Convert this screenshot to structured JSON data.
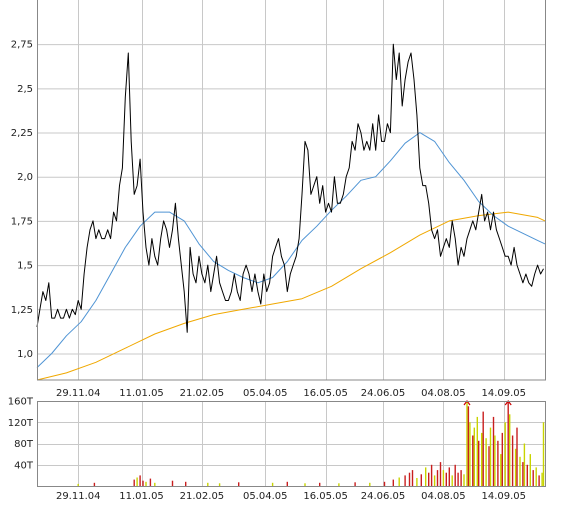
{
  "chart_data": [
    {
      "type": "line",
      "title": "",
      "xlabel": "",
      "ylabel": "",
      "ylim": [
        0.85,
        3.0
      ],
      "xlim": [
        "2004-11-01",
        "2005-10-12"
      ],
      "x_tick_labels": [
        "29.11.04",
        "11.01.05",
        "21.02.05",
        "05.04.05",
        "16.05.05",
        "24.06.05",
        "04.08.05",
        "14.09.05"
      ],
      "x_tick_dates": [
        "2004-11-29",
        "2005-01-11",
        "2005-02-21",
        "2005-04-05",
        "2005-05-16",
        "2005-06-24",
        "2005-08-04",
        "2005-09-14"
      ],
      "y_tick_labels": [
        "1,0",
        "1,25",
        "1,5",
        "1,75",
        "2,0",
        "2,25",
        "2,5",
        "2,75"
      ],
      "y_tick_values": [
        1.0,
        1.25,
        1.5,
        1.75,
        2.0,
        2.25,
        2.5,
        2.75
      ],
      "grid": true,
      "colors": {
        "price": "#000000",
        "ma_short": "#4f94d4",
        "ma_long": "#f0a800",
        "grid": "#c8c8c8",
        "frame": "#888888"
      },
      "series": [
        {
          "key": "price",
          "x": [
            "2004-11-01",
            "2004-11-03",
            "2004-11-05",
            "2004-11-07",
            "2004-11-09",
            "2004-11-11",
            "2004-11-13",
            "2004-11-15",
            "2004-11-17",
            "2004-11-19",
            "2004-11-21",
            "2004-11-23",
            "2004-11-25",
            "2004-11-27",
            "2004-11-29",
            "2004-12-01",
            "2004-12-03",
            "2004-12-05",
            "2004-12-07",
            "2004-12-09",
            "2004-12-11",
            "2004-12-13",
            "2004-12-15",
            "2004-12-17",
            "2004-12-19",
            "2004-12-21",
            "2004-12-23",
            "2004-12-25",
            "2004-12-27",
            "2004-12-29",
            "2004-12-31",
            "2005-01-02",
            "2005-01-04",
            "2005-01-06",
            "2005-01-08",
            "2005-01-10",
            "2005-01-12",
            "2005-01-14",
            "2005-01-16",
            "2005-01-18",
            "2005-01-20",
            "2005-01-22",
            "2005-01-24",
            "2005-01-26",
            "2005-01-28",
            "2005-01-30",
            "2005-02-01",
            "2005-02-03",
            "2005-02-05",
            "2005-02-07",
            "2005-02-09",
            "2005-02-11",
            "2005-02-13",
            "2005-02-15",
            "2005-02-17",
            "2005-02-19",
            "2005-02-21",
            "2005-02-23",
            "2005-02-25",
            "2005-02-27",
            "2005-03-01",
            "2005-03-03",
            "2005-03-05",
            "2005-03-07",
            "2005-03-09",
            "2005-03-11",
            "2005-03-13",
            "2005-03-15",
            "2005-03-17",
            "2005-03-19",
            "2005-03-21",
            "2005-03-23",
            "2005-03-25",
            "2005-03-27",
            "2005-03-29",
            "2005-03-31",
            "2005-04-02",
            "2005-04-04",
            "2005-04-06",
            "2005-04-08",
            "2005-04-10",
            "2005-04-12",
            "2005-04-14",
            "2005-04-16",
            "2005-04-18",
            "2005-04-20",
            "2005-04-22",
            "2005-04-24",
            "2005-04-26",
            "2005-04-28",
            "2005-04-30",
            "2005-05-02",
            "2005-05-04",
            "2005-05-06",
            "2005-05-08",
            "2005-05-10",
            "2005-05-12",
            "2005-05-14",
            "2005-05-16",
            "2005-05-18",
            "2005-05-20",
            "2005-05-22",
            "2005-05-24",
            "2005-05-26",
            "2005-05-28",
            "2005-05-30",
            "2005-06-01",
            "2005-06-03",
            "2005-06-05",
            "2005-06-07",
            "2005-06-09",
            "2005-06-11",
            "2005-06-13",
            "2005-06-15",
            "2005-06-17",
            "2005-06-19",
            "2005-06-21",
            "2005-06-23",
            "2005-06-25",
            "2005-06-27",
            "2005-06-29",
            "2005-07-01",
            "2005-07-03",
            "2005-07-05",
            "2005-07-07",
            "2005-07-09",
            "2005-07-11",
            "2005-07-13",
            "2005-07-15",
            "2005-07-17",
            "2005-07-19",
            "2005-07-21",
            "2005-07-23",
            "2005-07-25",
            "2005-07-27",
            "2005-07-29",
            "2005-07-31",
            "2005-08-02",
            "2005-08-04",
            "2005-08-06",
            "2005-08-08",
            "2005-08-10",
            "2005-08-12",
            "2005-08-14",
            "2005-08-16",
            "2005-08-18",
            "2005-08-20",
            "2005-08-22",
            "2005-08-24",
            "2005-08-26",
            "2005-08-28",
            "2005-08-30",
            "2005-09-01",
            "2005-09-03",
            "2005-09-05",
            "2005-09-07",
            "2005-09-09",
            "2005-09-11",
            "2005-09-13",
            "2005-09-15",
            "2005-09-17",
            "2005-09-19",
            "2005-09-21",
            "2005-09-23",
            "2005-09-25",
            "2005-09-27",
            "2005-09-29",
            "2005-10-01",
            "2005-10-03",
            "2005-10-05",
            "2005-10-07",
            "2005-10-09",
            "2005-10-11"
          ],
          "values": [
            1.15,
            1.25,
            1.35,
            1.3,
            1.4,
            1.2,
            1.2,
            1.25,
            1.2,
            1.2,
            1.25,
            1.2,
            1.25,
            1.22,
            1.3,
            1.25,
            1.45,
            1.6,
            1.7,
            1.75,
            1.65,
            1.7,
            1.65,
            1.65,
            1.7,
            1.65,
            1.8,
            1.75,
            1.95,
            2.05,
            2.45,
            2.7,
            2.2,
            1.9,
            1.95,
            2.1,
            1.8,
            1.6,
            1.5,
            1.65,
            1.55,
            1.5,
            1.65,
            1.75,
            1.7,
            1.6,
            1.7,
            1.85,
            1.65,
            1.5,
            1.35,
            1.12,
            1.6,
            1.45,
            1.4,
            1.55,
            1.45,
            1.4,
            1.5,
            1.35,
            1.45,
            1.55,
            1.4,
            1.35,
            1.3,
            1.3,
            1.35,
            1.45,
            1.35,
            1.3,
            1.45,
            1.5,
            1.45,
            1.35,
            1.45,
            1.35,
            1.28,
            1.45,
            1.35,
            1.4,
            1.55,
            1.6,
            1.65,
            1.55,
            1.5,
            1.35,
            1.45,
            1.5,
            1.55,
            1.65,
            1.9,
            2.2,
            2.15,
            1.9,
            1.95,
            2.0,
            1.85,
            1.95,
            1.8,
            1.85,
            1.8,
            2.0,
            1.85,
            1.85,
            1.9,
            2.0,
            2.05,
            2.2,
            2.15,
            2.3,
            2.25,
            2.15,
            2.2,
            2.15,
            2.3,
            2.15,
            2.35,
            2.2,
            2.2,
            2.3,
            2.25,
            2.75,
            2.55,
            2.7,
            2.4,
            2.55,
            2.65,
            2.7,
            2.55,
            2.35,
            2.05,
            1.95,
            1.95,
            1.85,
            1.7,
            1.65,
            1.7,
            1.55,
            1.6,
            1.65,
            1.6,
            1.75,
            1.65,
            1.5,
            1.6,
            1.55,
            1.65,
            1.7,
            1.75,
            1.7,
            1.8,
            1.9,
            1.75,
            1.8,
            1.7,
            1.8,
            1.7,
            1.65,
            1.6,
            1.55,
            1.55,
            1.5,
            1.6,
            1.5,
            1.45,
            1.4,
            1.45,
            1.4,
            1.38,
            1.45,
            1.5,
            1.45,
            1.48
          ]
        },
        {
          "key": "ma_short",
          "x": [
            "2004-11-01",
            "2004-11-11",
            "2004-11-21",
            "2004-12-01",
            "2004-12-11",
            "2004-12-21",
            "2004-12-31",
            "2005-01-10",
            "2005-01-20",
            "2005-01-30",
            "2005-02-09",
            "2005-02-19",
            "2005-03-01",
            "2005-03-11",
            "2005-03-21",
            "2005-03-31",
            "2005-04-10",
            "2005-04-20",
            "2005-04-30",
            "2005-05-10",
            "2005-05-20",
            "2005-05-30",
            "2005-06-09",
            "2005-06-19",
            "2005-06-29",
            "2005-07-09",
            "2005-07-19",
            "2005-07-29",
            "2005-08-08",
            "2005-08-18",
            "2005-08-28",
            "2005-09-07",
            "2005-09-17",
            "2005-09-27",
            "2005-10-07",
            "2005-10-12"
          ],
          "values": [
            0.92,
            1.0,
            1.1,
            1.18,
            1.3,
            1.45,
            1.6,
            1.72,
            1.8,
            1.8,
            1.75,
            1.62,
            1.52,
            1.47,
            1.43,
            1.4,
            1.43,
            1.52,
            1.64,
            1.72,
            1.81,
            1.89,
            1.98,
            2.0,
            2.09,
            2.19,
            2.25,
            2.2,
            2.08,
            1.98,
            1.86,
            1.78,
            1.72,
            1.68,
            1.64,
            1.62
          ]
        },
        {
          "key": "ma_long",
          "x": [
            "2004-11-01",
            "2004-11-21",
            "2004-12-11",
            "2004-12-31",
            "2005-01-20",
            "2005-02-09",
            "2005-03-01",
            "2005-03-21",
            "2005-04-10",
            "2005-04-30",
            "2005-05-20",
            "2005-06-09",
            "2005-06-29",
            "2005-07-19",
            "2005-08-08",
            "2005-08-28",
            "2005-09-17",
            "2005-10-07",
            "2005-10-12"
          ],
          "values": [
            0.85,
            0.89,
            0.95,
            1.03,
            1.11,
            1.17,
            1.22,
            1.25,
            1.28,
            1.31,
            1.38,
            1.48,
            1.57,
            1.67,
            1.75,
            1.78,
            1.8,
            1.77,
            1.75
          ]
        }
      ]
    },
    {
      "type": "bar",
      "title": "",
      "xlabel": "",
      "ylabel": "",
      "ylim": [
        0,
        160
      ],
      "y_tick_labels": [
        "40T",
        "80T",
        "120T",
        "160T"
      ],
      "y_tick_values": [
        40,
        80,
        120,
        160
      ],
      "x_tick_labels": [
        "29.11.04",
        "11.01.05",
        "21.02.05",
        "05.04.05",
        "16.05.05",
        "24.06.05",
        "04.08.05",
        "14.09.05"
      ],
      "grid": true,
      "colors": {
        "up": "#c8d400",
        "down": "#c81e1e",
        "arrow": "#cc0000"
      },
      "clipped_bars_shown_with_arrows": [
        "2005-08-20",
        "2005-09-17"
      ],
      "volume": {
        "x": [
          "2004-11-29",
          "2004-12-10",
          "2005-01-06",
          "2005-01-08",
          "2005-01-10",
          "2005-01-12",
          "2005-01-14",
          "2005-01-17",
          "2005-01-20",
          "2005-02-01",
          "2005-02-10",
          "2005-02-25",
          "2005-03-05",
          "2005-03-18",
          "2005-04-10",
          "2005-04-20",
          "2005-05-02",
          "2005-05-12",
          "2005-05-25",
          "2005-06-05",
          "2005-06-15",
          "2005-06-25",
          "2005-07-01",
          "2005-07-05",
          "2005-07-09",
          "2005-07-12",
          "2005-07-14",
          "2005-07-17",
          "2005-07-20",
          "2005-07-23",
          "2005-07-25",
          "2005-07-27",
          "2005-07-29",
          "2005-07-31",
          "2005-08-02",
          "2005-08-04",
          "2005-08-06",
          "2005-08-08",
          "2005-08-10",
          "2005-08-12",
          "2005-08-14",
          "2005-08-16",
          "2005-08-18",
          "2005-08-20",
          "2005-08-21",
          "2005-08-22",
          "2005-08-24",
          "2005-08-25",
          "2005-08-27",
          "2005-08-28",
          "2005-08-30",
          "2005-08-31",
          "2005-09-02",
          "2005-09-04",
          "2005-09-05",
          "2005-09-07",
          "2005-09-08",
          "2005-09-10",
          "2005-09-12",
          "2005-09-13",
          "2005-09-15",
          "2005-09-17",
          "2005-09-18",
          "2005-09-20",
          "2005-09-22",
          "2005-09-23",
          "2005-09-25",
          "2005-09-27",
          "2005-09-28",
          "2005-09-30",
          "2005-10-02",
          "2005-10-04",
          "2005-10-06",
          "2005-10-08",
          "2005-10-10",
          "2005-10-11"
        ],
        "values": [
          4,
          6,
          12,
          16,
          20,
          10,
          8,
          14,
          6,
          10,
          8,
          6,
          5,
          7,
          6,
          8,
          5,
          6,
          5,
          7,
          6,
          8,
          12,
          16,
          20,
          25,
          30,
          15,
          22,
          35,
          25,
          40,
          20,
          30,
          45,
          30,
          25,
          35,
          20,
          40,
          25,
          30,
          22,
          160,
          150,
          120,
          95,
          110,
          130,
          85,
          100,
          140,
          90,
          75,
          110,
          130,
          95,
          85,
          60,
          100,
          120,
          160,
          135,
          95,
          70,
          110,
          55,
          45,
          80,
          40,
          60,
          30,
          35,
          20,
          25,
          120
        ],
        "direction": [
          "up",
          "down",
          "down",
          "up",
          "down",
          "down",
          "up",
          "down",
          "up",
          "down",
          "down",
          "up",
          "up",
          "down",
          "up",
          "down",
          "up",
          "down",
          "up",
          "down",
          "up",
          "down",
          "down",
          "up",
          "down",
          "down",
          "down",
          "up",
          "down",
          "up",
          "down",
          "down",
          "up",
          "down",
          "down",
          "up",
          "down",
          "down",
          "up",
          "down",
          "down",
          "down",
          "up",
          "up",
          "down",
          "up",
          "down",
          "up",
          "up",
          "down",
          "up",
          "down",
          "up",
          "down",
          "up",
          "down",
          "up",
          "down",
          "up",
          "down",
          "up",
          "down",
          "up",
          "down",
          "up",
          "down",
          "up",
          "down",
          "up",
          "down",
          "up",
          "down",
          "up",
          "down",
          "up",
          "up"
        ]
      }
    }
  ]
}
